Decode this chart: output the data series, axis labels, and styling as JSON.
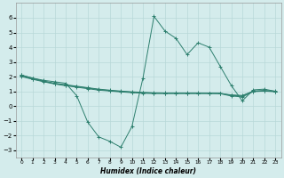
{
  "x": [
    0,
    1,
    2,
    3,
    4,
    5,
    6,
    7,
    8,
    9,
    10,
    11,
    12,
    13,
    14,
    15,
    16,
    17,
    18,
    19,
    20,
    21,
    22,
    23
  ],
  "line1": [
    2.1,
    1.9,
    1.75,
    1.65,
    1.55,
    0.7,
    -1.1,
    -2.1,
    -2.4,
    -2.8,
    -1.4,
    1.9,
    6.1,
    5.1,
    4.6,
    3.5,
    4.3,
    4.0,
    2.7,
    1.4,
    0.35,
    1.1,
    1.15,
    1.0
  ],
  "line2": [
    2.1,
    1.9,
    1.7,
    1.55,
    1.45,
    1.35,
    1.25,
    1.15,
    1.08,
    1.02,
    0.97,
    0.93,
    0.9,
    0.89,
    0.89,
    0.89,
    0.89,
    0.88,
    0.87,
    0.72,
    0.68,
    1.02,
    1.06,
    1.01
  ],
  "line3": [
    2.05,
    1.85,
    1.68,
    1.52,
    1.42,
    1.32,
    1.22,
    1.12,
    1.05,
    0.99,
    0.94,
    0.9,
    0.88,
    0.87,
    0.87,
    0.87,
    0.87,
    0.87,
    0.86,
    0.76,
    0.72,
    1.0,
    1.04,
    0.99
  ],
  "line4": [
    2.0,
    1.82,
    1.65,
    1.5,
    1.38,
    1.28,
    1.18,
    1.08,
    1.02,
    0.96,
    0.91,
    0.87,
    0.85,
    0.85,
    0.85,
    0.85,
    0.85,
    0.85,
    0.84,
    0.68,
    0.62,
    0.98,
    1.02,
    0.97
  ],
  "line_color": "#2d7f6e",
  "bg_color": "#d4ecec",
  "grid_color": "#b8d8d8",
  "xlabel": "Humidex (Indice chaleur)",
  "ylim": [
    -3.5,
    7.0
  ],
  "xlim": [
    -0.5,
    23.5
  ],
  "yticks": [
    -3,
    -2,
    -1,
    0,
    1,
    2,
    3,
    4,
    5,
    6
  ],
  "xtick_labels": [
    "0",
    "1",
    "2",
    "3",
    "4",
    "5",
    "6",
    "7",
    "8",
    "9",
    "10",
    "11",
    "12",
    "13",
    "14",
    "15",
    "16",
    "17",
    "18",
    "19",
    "20",
    "21",
    "22",
    "23"
  ]
}
